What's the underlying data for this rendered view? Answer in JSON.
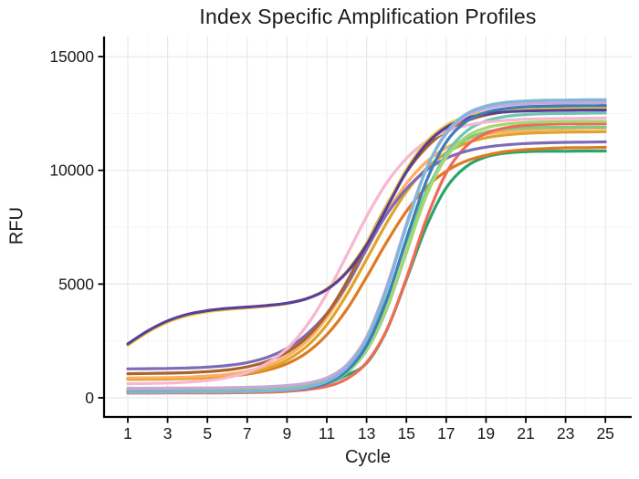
{
  "title": "Index Specific Amplification Profiles",
  "chart_data": {
    "type": "line",
    "title": "Index Specific Amplification Profiles",
    "xlabel": "Cycle",
    "ylabel": "RFU",
    "x_ticks": [
      1,
      3,
      5,
      7,
      9,
      11,
      13,
      15,
      17,
      19,
      21,
      23,
      25
    ],
    "y_ticks": [
      0,
      5000,
      10000,
      15000
    ],
    "minor_x_ticks": [
      2,
      4,
      6,
      8,
      10,
      12,
      14,
      16,
      18,
      20,
      22,
      24
    ],
    "minor_y_ticks": [
      2500,
      7500,
      12500
    ],
    "xlim": [
      1,
      25
    ],
    "ylim": [
      0,
      15500
    ],
    "grid": {
      "major": true,
      "minor": true
    },
    "legend": "none",
    "x": [
      1,
      2,
      3,
      4,
      5,
      6,
      7,
      8,
      9,
      10,
      11,
      12,
      13,
      14,
      15,
      16,
      17,
      18,
      19,
      20,
      21,
      22,
      23,
      24,
      25
    ],
    "series": [
      {
        "name": "sea-green",
        "color": "#2AA36C",
        "values": [
          310,
          310,
          312,
          314,
          317,
          322,
          330,
          350,
          390,
          470,
          630,
          1000,
          1520,
          2950,
          5190,
          7520,
          9230,
          10160,
          10590,
          10760,
          10820,
          10840,
          10840,
          10850,
          10850
        ]
      },
      {
        "name": "amber",
        "color": "#DE7A22",
        "values": [
          830,
          835,
          845,
          860,
          895,
          945,
          1040,
          1215,
          1500,
          1990,
          2770,
          3880,
          5310,
          6830,
          8200,
          9250,
          9960,
          10410,
          10660,
          10830,
          10910,
          10960,
          10990,
          11000,
          11010
        ]
      },
      {
        "name": "goldenrod",
        "color": "#DFA32A",
        "values": [
          810,
          815,
          825,
          845,
          885,
          950,
          1070,
          1290,
          1660,
          2270,
          3210,
          4530,
          6090,
          7680,
          9060,
          10080,
          10770,
          11190,
          11430,
          11560,
          11630,
          11660,
          11680,
          11690,
          11700
        ]
      },
      {
        "name": "orange",
        "color": "#FDAE61",
        "values": [
          870,
          880,
          890,
          910,
          960,
          1030,
          1170,
          1410,
          1830,
          2500,
          3520,
          4900,
          6520,
          8100,
          9420,
          10370,
          10990,
          11360,
          11580,
          11700,
          11770,
          11800,
          11820,
          11840,
          11850
        ]
      },
      {
        "name": "light-green-2",
        "color": "#7FCB84",
        "values": [
          330,
          330,
          332,
          335,
          338,
          344,
          355,
          380,
          430,
          540,
          780,
          1300,
          2380,
          4340,
          6830,
          9060,
          10600,
          11360,
          11690,
          11820,
          11870,
          11890,
          11890,
          11900,
          11900
        ]
      },
      {
        "name": "salmon",
        "color": "#EE6B57",
        "values": [
          210,
          210,
          212,
          214,
          216,
          220,
          228,
          245,
          285,
          360,
          500,
          830,
          1550,
          2970,
          5250,
          7850,
          9880,
          11060,
          11620,
          11870,
          11980,
          12020,
          12040,
          12040,
          12050
        ]
      },
      {
        "name": "medium-purple",
        "color": "#7E6BB8",
        "values": [
          1270,
          1280,
          1290,
          1310,
          1350,
          1420,
          1550,
          1780,
          2170,
          2800,
          3700,
          4960,
          6550,
          8050,
          9190,
          10000,
          10530,
          10840,
          11020,
          11120,
          11180,
          11210,
          11230,
          11240,
          11250
        ]
      },
      {
        "name": "brown",
        "color": "#A9632D",
        "values": [
          1060,
          1070,
          1085,
          1105,
          1150,
          1225,
          1360,
          1600,
          2000,
          2660,
          3680,
          5090,
          6780,
          8460,
          9920,
          11000,
          11730,
          12170,
          12430,
          12580,
          12660,
          12710,
          12740,
          12760,
          12780
        ]
      },
      {
        "name": "teal",
        "color": "#6EC6B5",
        "values": [
          300,
          300,
          302,
          304,
          306,
          310,
          318,
          335,
          375,
          460,
          650,
          1110,
          2080,
          3870,
          6380,
          8920,
          10730,
          11710,
          12170,
          12370,
          12450,
          12490,
          12500,
          12510,
          12520
        ]
      },
      {
        "name": "light-green",
        "color": "#A5D76E",
        "values": [
          290,
          290,
          292,
          294,
          297,
          302,
          310,
          330,
          370,
          460,
          660,
          1130,
          2110,
          3930,
          6420,
          8870,
          10580,
          11470,
          11870,
          12030,
          12100,
          12130,
          12140,
          12150,
          12150
        ]
      },
      {
        "name": "pink",
        "color": "#F7B6D2",
        "values": [
          615,
          630,
          650,
          690,
          760,
          890,
          1120,
          1520,
          2160,
          3180,
          4580,
          6260,
          7970,
          9440,
          10520,
          11270,
          11710,
          11970,
          12120,
          12200,
          12250,
          12270,
          12280,
          12290,
          12300
        ]
      },
      {
        "name": "yellow",
        "color": "#EFD23F",
        "values": [
          2310,
          2880,
          3320,
          3610,
          3780,
          3880,
          3950,
          4030,
          4140,
          4360,
          4790,
          5560,
          6800,
          8430,
          10040,
          11250,
          11980,
          12360,
          12550,
          12630,
          12670,
          12690,
          12700,
          12710,
          12710
        ]
      },
      {
        "name": "dark-purple",
        "color": "#5B3E99",
        "values": [
          2370,
          2940,
          3380,
          3670,
          3830,
          3930,
          3990,
          4060,
          4160,
          4360,
          4760,
          5510,
          6720,
          8330,
          9930,
          11150,
          11890,
          12280,
          12480,
          12570,
          12610,
          12630,
          12640,
          12650,
          12650
        ]
      },
      {
        "name": "steel-blue",
        "color": "#3B7EB8",
        "values": [
          260,
          260,
          262,
          265,
          268,
          272,
          282,
          300,
          340,
          430,
          650,
          1180,
          2290,
          4280,
          6980,
          9520,
          11240,
          12140,
          12550,
          12720,
          12790,
          12820,
          12840,
          12840,
          12850
        ]
      },
      {
        "name": "plum",
        "color": "#C9A7D8",
        "values": [
          420,
          420,
          425,
          430,
          435,
          445,
          460,
          490,
          540,
          640,
          880,
          1450,
          2680,
          4870,
          7640,
          10070,
          11600,
          12380,
          12720,
          12870,
          12930,
          12960,
          12970,
          12980,
          12980
        ]
      },
      {
        "name": "sky-blue",
        "color": "#7EB6DC",
        "values": [
          250,
          250,
          250,
          255,
          260,
          265,
          275,
          300,
          350,
          460,
          720,
          1320,
          2560,
          4740,
          7550,
          10060,
          11660,
          12470,
          12830,
          12990,
          13050,
          13080,
          13090,
          13100,
          13100
        ]
      }
    ]
  },
  "style": {
    "background": "#ffffff",
    "axis_color": "#000000",
    "text_color": "#1a1a1a",
    "grid_major_color": "#e8e8e8",
    "grid_minor_color": "#f4f4f4",
    "line_width": 3.2
  }
}
